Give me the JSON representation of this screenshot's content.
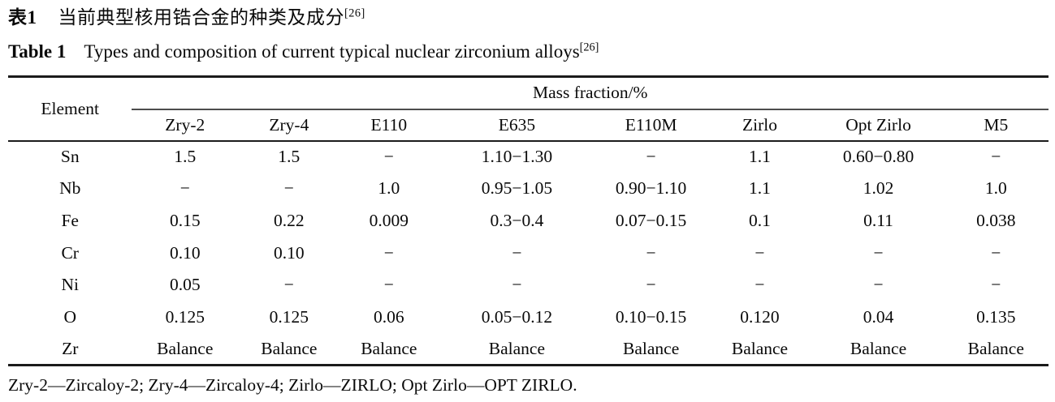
{
  "page": {
    "background": "#ffffff",
    "text_color": "#0a0a0a",
    "rule_color": "#1b1b1b"
  },
  "titles": {
    "zh": {
      "label": "表1",
      "text": "当前典型核用锆合金的种类及成分",
      "ref": "[26]"
    },
    "en": {
      "label": "Table 1",
      "text": "Types and composition of current typical nuclear zirconium alloys",
      "ref": "[26]"
    }
  },
  "table": {
    "element_header": "Element",
    "group_header": "Mass fraction/%",
    "alloy_columns": [
      "Zry-2",
      "Zry-4",
      "E110",
      "E635",
      "E110M",
      "Zirlo",
      "Opt Zirlo",
      "M5"
    ],
    "rows": [
      {
        "element": "Sn",
        "values": [
          "1.5",
          "1.5",
          "−",
          "1.10−1.30",
          "−",
          "1.1",
          "0.60−0.80",
          "−"
        ]
      },
      {
        "element": "Nb",
        "values": [
          "−",
          "−",
          "1.0",
          "0.95−1.05",
          "0.90−1.10",
          "1.1",
          "1.02",
          "1.0"
        ]
      },
      {
        "element": "Fe",
        "values": [
          "0.15",
          "0.22",
          "0.009",
          "0.3−0.4",
          "0.07−0.15",
          "0.1",
          "0.11",
          "0.038"
        ]
      },
      {
        "element": "Cr",
        "values": [
          "0.10",
          "0.10",
          "−",
          "−",
          "−",
          "−",
          "−",
          "−"
        ]
      },
      {
        "element": "Ni",
        "values": [
          "0.05",
          "−",
          "−",
          "−",
          "−",
          "−",
          "−",
          "−"
        ]
      },
      {
        "element": "O",
        "values": [
          "0.125",
          "0.125",
          "0.06",
          "0.05−0.12",
          "0.10−0.15",
          "0.120",
          "0.04",
          "0.135"
        ]
      },
      {
        "element": "Zr",
        "values": [
          "Balance",
          "Balance",
          "Balance",
          "Balance",
          "Balance",
          "Balance",
          "Balance",
          "Balance"
        ]
      }
    ],
    "column_widths_percent": [
      11.9,
      10.2,
      9.8,
      9.4,
      15.2,
      10.6,
      10.3,
      12.5,
      10.1
    ]
  },
  "footnote": "Zry-2—Zircaloy-2; Zry-4—Zircaloy-4; Zirlo—ZIRLO; Opt Zirlo—OPT ZIRLO."
}
